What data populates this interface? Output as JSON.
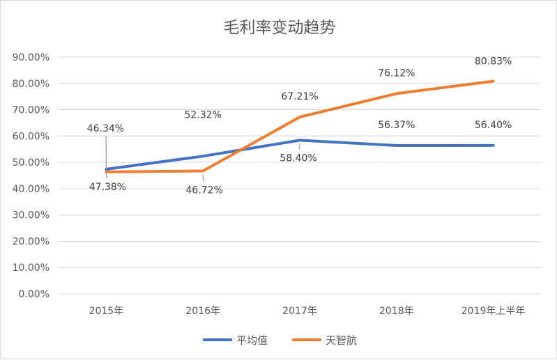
{
  "chart_data": {
    "type": "line",
    "title": "毛利率变动趋势",
    "categories": [
      "2015年",
      "2016年",
      "2017年",
      "2018年",
      "2019年上半年"
    ],
    "series": [
      {
        "name": "平均值",
        "values": [
          47.38,
          52.32,
          58.4,
          56.37,
          56.4
        ],
        "labels": [
          "47.38%",
          "52.32%",
          "58.40%",
          "56.37%",
          "56.40%"
        ],
        "color": "#4472C4"
      },
      {
        "name": "天智航",
        "values": [
          46.34,
          46.72,
          67.21,
          76.12,
          80.83
        ],
        "labels": [
          "46.34%",
          "46.72%",
          "67.21%",
          "76.12%",
          "80.83%"
        ],
        "color": "#ED7D31"
      }
    ],
    "ylim": [
      0,
      90
    ],
    "yticks": [
      "0.00%",
      "10.00%",
      "20.00%",
      "30.00%",
      "40.00%",
      "50.00%",
      "60.00%",
      "70.00%",
      "80.00%",
      "90.00%"
    ],
    "grid": true,
    "legend_position": "bottom"
  }
}
